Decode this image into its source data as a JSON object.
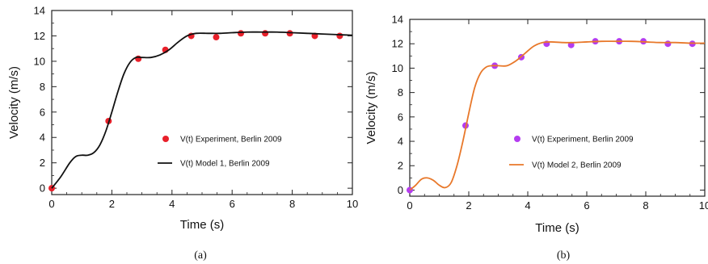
{
  "chart_data": [
    {
      "type": "line",
      "panel_label": "(a)",
      "xlabel": "Time (s)",
      "ylabel": "Velocity (m/s)",
      "xlim": [
        0,
        10
      ],
      "ylim": [
        -0.5,
        14
      ],
      "xticks": [
        0,
        2,
        4,
        6,
        8,
        10
      ],
      "yticks": [
        0,
        2,
        4,
        6,
        8,
        10,
        12,
        14
      ],
      "grid": false,
      "legend_placement": "lower-right",
      "series": [
        {
          "name": "V(t) Experiment, Berlin 2009",
          "kind": "scatter",
          "color": "#e8202a",
          "x": [
            0,
            1.89,
            2.88,
            3.78,
            4.64,
            5.47,
            6.29,
            7.1,
            7.92,
            8.75,
            9.58
          ],
          "y": [
            0.0,
            5.29,
            10.2,
            10.9,
            12.0,
            11.9,
            12.2,
            12.2,
            12.2,
            12.0,
            12.0
          ]
        },
        {
          "name": "V(t) Model 1, Berlin 2009",
          "kind": "line",
          "color": "#111111",
          "x": [
            0,
            0.3,
            0.6,
            0.8,
            1.0,
            1.2,
            1.4,
            1.6,
            1.8,
            2.0,
            2.2,
            2.4,
            2.6,
            2.8,
            3.0,
            3.3,
            3.6,
            3.9,
            4.2,
            4.5,
            4.8,
            5.2,
            5.6,
            6.0,
            6.5,
            7.0,
            7.5,
            8.0,
            8.5,
            9.0,
            9.5,
            10.0
          ],
          "y": [
            0.0,
            0.9,
            2.0,
            2.5,
            2.6,
            2.6,
            2.8,
            3.4,
            4.5,
            6.0,
            7.6,
            9.0,
            9.9,
            10.3,
            10.3,
            10.3,
            10.5,
            10.9,
            11.5,
            12.0,
            12.2,
            12.2,
            12.2,
            12.25,
            12.3,
            12.3,
            12.3,
            12.25,
            12.2,
            12.15,
            12.1,
            12.05
          ]
        }
      ]
    },
    {
      "type": "line",
      "panel_label": "(b)",
      "xlabel": "Time (s)",
      "ylabel": "Velocity (m/s)",
      "xlim": [
        0,
        10
      ],
      "ylim": [
        -0.5,
        14
      ],
      "xticks": [
        0,
        2,
        4,
        6,
        8,
        10
      ],
      "yticks": [
        0,
        2,
        4,
        6,
        8,
        10,
        12,
        14
      ],
      "grid": false,
      "legend_placement": "lower-right",
      "series": [
        {
          "name": "V(t) Experiment, Berlin 2009",
          "kind": "scatter",
          "color": "#b43cf0",
          "x": [
            0,
            1.89,
            2.88,
            3.78,
            4.64,
            5.47,
            6.29,
            7.1,
            7.92,
            8.75,
            9.58
          ],
          "y": [
            0.0,
            5.29,
            10.2,
            10.9,
            12.0,
            11.9,
            12.2,
            12.2,
            12.2,
            12.0,
            12.0
          ]
        },
        {
          "name": "V(t) Model 2, Berlin 2009",
          "kind": "line",
          "color": "#e8782a",
          "x": [
            0,
            0.2,
            0.4,
            0.6,
            0.8,
            1.0,
            1.2,
            1.4,
            1.6,
            1.8,
            2.0,
            2.2,
            2.4,
            2.6,
            2.8,
            3.0,
            3.3,
            3.6,
            3.9,
            4.2,
            4.5,
            4.8,
            5.2,
            5.6,
            6.0,
            6.5,
            7.0,
            7.5,
            8.0,
            8.5,
            9.0,
            9.5,
            10.0
          ],
          "y": [
            0.0,
            0.4,
            0.9,
            1.0,
            0.8,
            0.4,
            0.2,
            0.6,
            2.0,
            4.0,
            6.3,
            8.4,
            9.6,
            10.1,
            10.2,
            10.2,
            10.2,
            10.6,
            11.2,
            11.8,
            12.1,
            12.15,
            12.1,
            12.1,
            12.15,
            12.2,
            12.2,
            12.2,
            12.15,
            12.1,
            12.1,
            12.05,
            12.05
          ]
        }
      ]
    }
  ]
}
